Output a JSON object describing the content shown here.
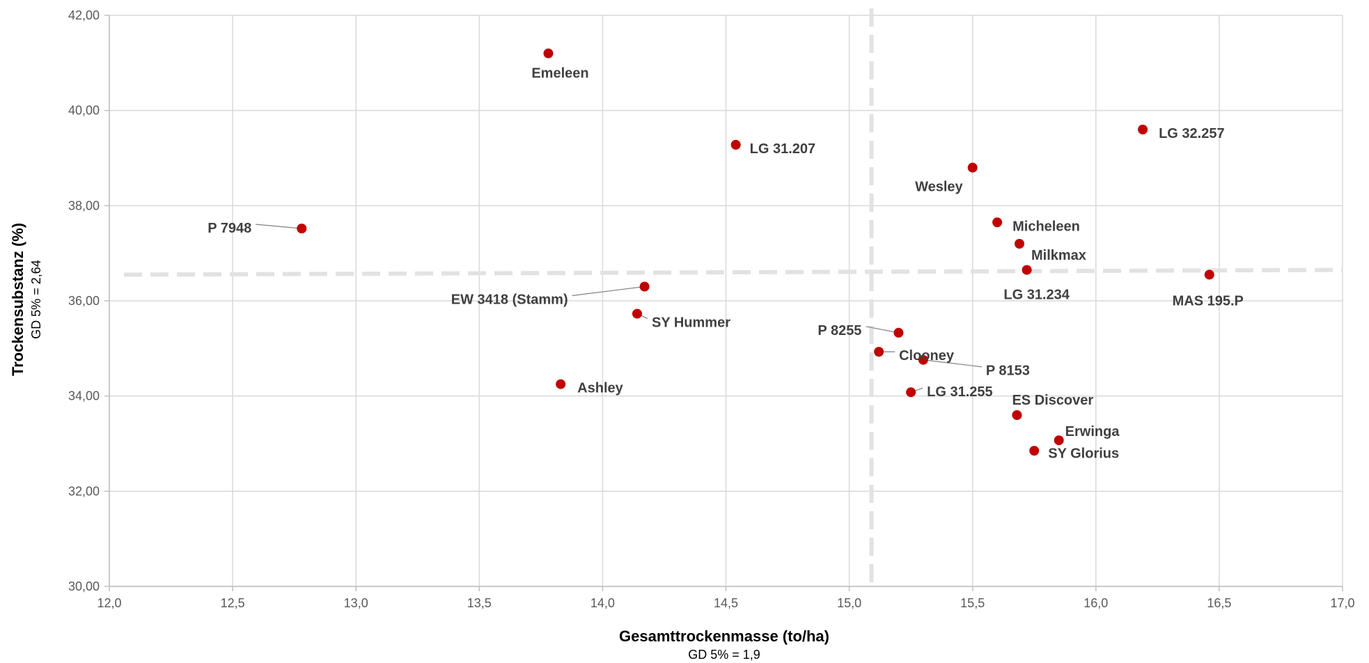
{
  "chart_data": {
    "type": "scatter",
    "xlabel": "Gesamttrockenmasse (to/ha)",
    "xlabel_note": "GD 5% = 1,9",
    "ylabel": "Trockensubstanz (%)",
    "ylabel_note": "GD 5% = 2,64",
    "xlim": [
      12.0,
      17.0
    ],
    "ylim": [
      30.0,
      42.0
    ],
    "x_ticks": [
      "12,0",
      "12,5",
      "13,0",
      "13,5",
      "14,0",
      "14,5",
      "15,0",
      "15,5",
      "16,0",
      "16,5",
      "17,0"
    ],
    "y_ticks": [
      "30,00",
      "32,00",
      "34,00",
      "36,00",
      "38,00",
      "40,00",
      "42,00"
    ],
    "grid": true,
    "point_color": "#C00000",
    "reference_lines": [
      {
        "axis": "x",
        "value": 15.09,
        "style": "dashed"
      },
      {
        "axis": "y",
        "from": 36.55,
        "to": 36.65,
        "style": "dashed"
      }
    ],
    "points": [
      {
        "label": "Emeleen",
        "x": 13.78,
        "y": 41.2
      },
      {
        "label": "LG 31.207",
        "x": 14.54,
        "y": 39.28
      },
      {
        "label": "LG 32.257",
        "x": 16.19,
        "y": 39.6
      },
      {
        "label": "Wesley",
        "x": 15.5,
        "y": 38.8
      },
      {
        "label": "P 7948",
        "x": 12.78,
        "y": 37.52
      },
      {
        "label": "Micheleen",
        "x": 15.6,
        "y": 37.65
      },
      {
        "label": "Milkmax",
        "x": 15.69,
        "y": 37.2
      },
      {
        "label": "LG 31.234",
        "x": 15.72,
        "y": 36.65
      },
      {
        "label": "MAS 195.P",
        "x": 16.46,
        "y": 36.55
      },
      {
        "label": "EW 3418 (Stamm)",
        "x": 14.17,
        "y": 36.3
      },
      {
        "label": "SY Hummer",
        "x": 14.14,
        "y": 35.73
      },
      {
        "label": "P 8255",
        "x": 15.2,
        "y": 35.33
      },
      {
        "label": "Clooney",
        "x": 15.12,
        "y": 34.93
      },
      {
        "label": "P 8153",
        "x": 15.3,
        "y": 34.76
      },
      {
        "label": "Ashley",
        "x": 13.83,
        "y": 34.25
      },
      {
        "label": "LG 31.255",
        "x": 15.25,
        "y": 34.08
      },
      {
        "label": "ES Discover",
        "x": 15.68,
        "y": 33.6
      },
      {
        "label": "Erwinga",
        "x": 15.85,
        "y": 33.07
      },
      {
        "label": "SY Glorius",
        "x": 15.75,
        "y": 32.85
      }
    ]
  }
}
